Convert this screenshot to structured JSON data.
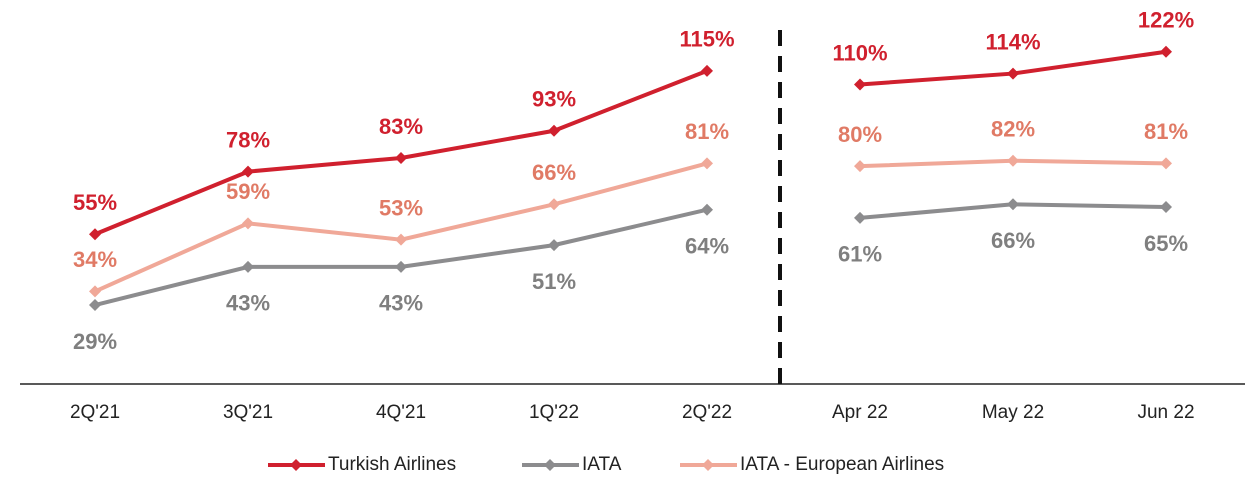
{
  "chart_data": [
    {
      "type": "line",
      "categories": [
        "2Q'21",
        "3Q'21",
        "4Q'21",
        "1Q'22",
        "2Q'22"
      ],
      "ylim": [
        0,
        130
      ],
      "series": [
        {
          "name": "Turkish Airlines",
          "color": "#d0202e",
          "label_color": "#d0202e",
          "label_position": "above",
          "values": [
            55,
            78,
            83,
            93,
            115
          ],
          "value_labels": [
            "55%",
            "78%",
            "83%",
            "93%",
            "115%"
          ]
        },
        {
          "name": "IATA",
          "color": "#8c8c8e",
          "label_color": "#7f7f7f",
          "label_position": "below",
          "values": [
            29,
            43,
            43,
            51,
            64
          ],
          "value_labels": [
            "29%",
            "43%",
            "43%",
            "51%",
            "64%"
          ]
        },
        {
          "name": "IATA - European Airlines",
          "color": "#f0a898",
          "label_color": "#e07a65",
          "label_position": "above",
          "values": [
            34,
            59,
            53,
            66,
            81
          ],
          "value_labels": [
            "34%",
            "59%",
            "53%",
            "66%",
            "81%"
          ]
        }
      ]
    },
    {
      "type": "line",
      "categories": [
        "Apr 22",
        "May 22",
        "Jun 22"
      ],
      "ylim": [
        0,
        130
      ],
      "series": [
        {
          "color": "#d0202e",
          "label_color": "#d0202e",
          "label_position": "above",
          "values": [
            110,
            114,
            122
          ],
          "value_labels": [
            "110%",
            "114%",
            "122%"
          ]
        },
        {
          "color": "#8c8c8e",
          "label_color": "#7f7f7f",
          "label_position": "below",
          "values": [
            61,
            66,
            65
          ],
          "value_labels": [
            "61%",
            "66%",
            "65%"
          ]
        },
        {
          "color": "#f0a898",
          "label_color": "#e07a65",
          "label_position": "above",
          "values": [
            80,
            82,
            81
          ],
          "value_labels": [
            "80%",
            "82%",
            "81%"
          ]
        }
      ]
    }
  ]
}
